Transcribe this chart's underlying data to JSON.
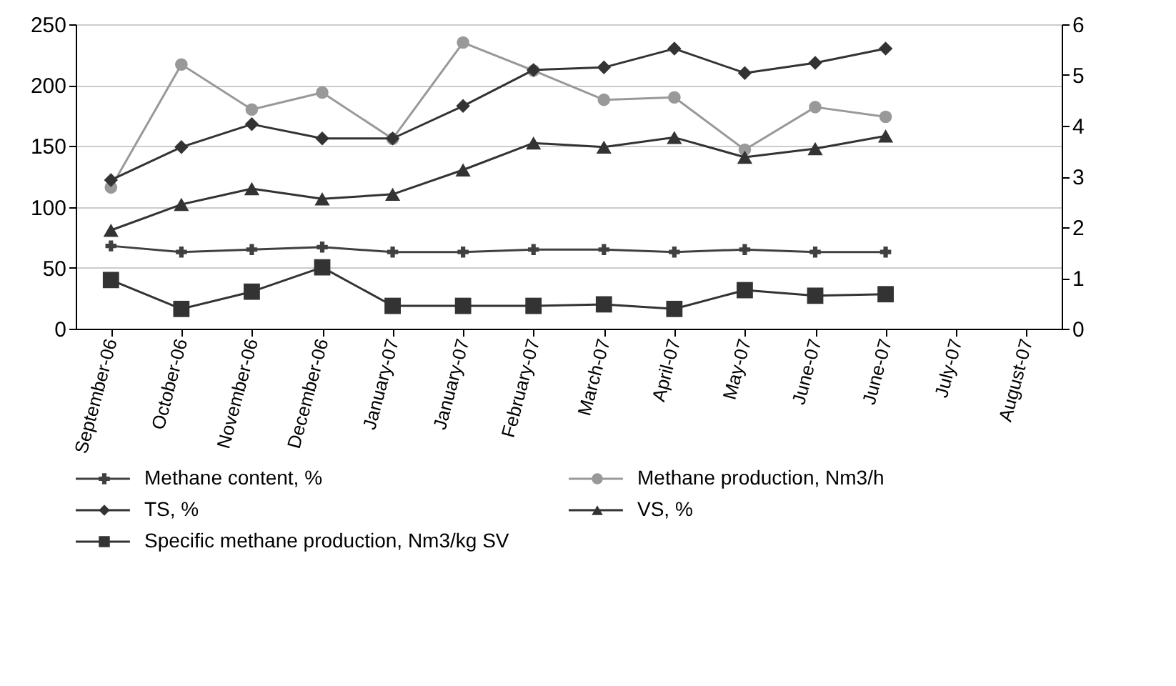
{
  "chart_data": {
    "type": "line",
    "categories": [
      "September-06",
      "October-06",
      "November-06",
      "December-06",
      "January-07",
      "January-07",
      "February-07",
      "March-07",
      "April-07",
      "May-07",
      "June-07",
      "June-07",
      "July-07",
      "August-07"
    ],
    "series": [
      {
        "name": "Methane content, %",
        "color": "#404040",
        "marker": "cross",
        "values": [
          68,
          63,
          65,
          67,
          63,
          63,
          65,
          65,
          63,
          65,
          63,
          63,
          null,
          null
        ]
      },
      {
        "name": "Methane production, Nm3/h",
        "color": "#999999",
        "marker": "circle",
        "values": [
          116,
          217,
          180,
          194,
          156,
          235,
          212,
          188,
          190,
          147,
          182,
          174,
          null,
          null
        ]
      },
      {
        "name": "TS, %",
        "color": "#333333",
        "marker": "diamond",
        "axis": "y2",
        "values": [
          2.93,
          3.58,
          4.03,
          3.75,
          3.75,
          4.39,
          5.1,
          5.15,
          5.52,
          5.04,
          5.24,
          5.52,
          null,
          null
        ]
      },
      {
        "name": "VS, %",
        "color": "#333333",
        "marker": "triangle",
        "axis": "y2",
        "values": [
          1.94,
          2.45,
          2.76,
          2.56,
          2.65,
          3.13,
          3.66,
          3.58,
          3.77,
          3.38,
          3.55,
          3.8,
          null,
          null
        ]
      },
      {
        "name": "Specific methane production, Nm3/kg SV",
        "color": "#333333",
        "marker": "square",
        "axis": "y2",
        "values": [
          0.96,
          0.39,
          0.73,
          1.21,
          0.45,
          0.45,
          0.45,
          0.48,
          0.39,
          0.76,
          0.65,
          0.68,
          null,
          null
        ]
      }
    ],
    "ylim": [
      0,
      250
    ],
    "yticks": [
      0,
      50,
      100,
      150,
      200,
      250
    ],
    "y2lim": [
      0,
      6
    ],
    "y2ticks": [
      0,
      1,
      2,
      3,
      4,
      5,
      6
    ],
    "grid": "y",
    "legend": "bottom",
    "line_style": "solid"
  }
}
